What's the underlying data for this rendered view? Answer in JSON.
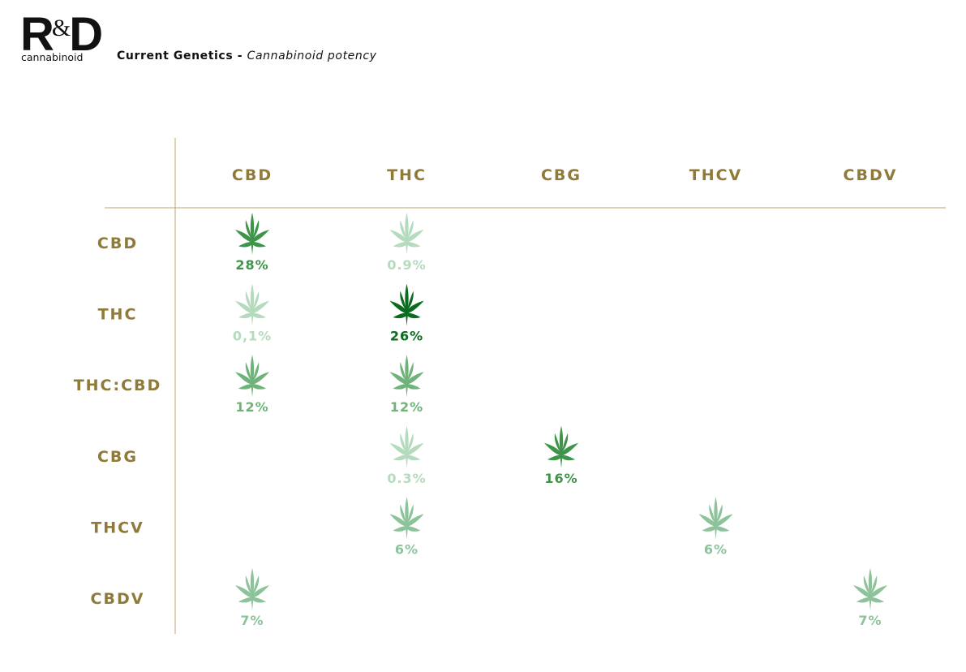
{
  "header": {
    "logo_mark": "R",
    "logo_amp": "&",
    "logo_mark_end": "D",
    "logo_sub": "cannabinoid",
    "title": "Current Genetics - ",
    "subtitle": "Cannabinoid potency"
  },
  "colors": {
    "label_gold": "#8f7a3a",
    "grid_line": "#b9a46a",
    "leaf_dark": "#0b6b1f",
    "leaf_strong": "#3e9449",
    "leaf_medium": "#6fb27a",
    "leaf_soft": "#8cc39a",
    "leaf_faint": "#b5dbbe"
  },
  "chart_data": {
    "type": "table",
    "columns": [
      "CBD",
      "THC",
      "CBG",
      "THCV",
      "CBDV"
    ],
    "rows": [
      "CBD",
      "THC",
      "THC:CBD",
      "CBG",
      "THCV",
      "CBDV"
    ],
    "cells": [
      {
        "row": "CBD",
        "column": "CBD",
        "value": "28%",
        "intensity": "strong"
      },
      {
        "row": "CBD",
        "column": "THC",
        "value": "0.9%",
        "intensity": "faint"
      },
      {
        "row": "THC",
        "column": "CBD",
        "value": "0,1%",
        "intensity": "faint"
      },
      {
        "row": "THC",
        "column": "THC",
        "value": "26%",
        "intensity": "dark"
      },
      {
        "row": "THC:CBD",
        "column": "CBD",
        "value": "12%",
        "intensity": "medium"
      },
      {
        "row": "THC:CBD",
        "column": "THC",
        "value": "12%",
        "intensity": "medium"
      },
      {
        "row": "CBG",
        "column": "THC",
        "value": "0.3%",
        "intensity": "faint"
      },
      {
        "row": "CBG",
        "column": "CBG",
        "value": "16%",
        "intensity": "strong"
      },
      {
        "row": "THCV",
        "column": "THC",
        "value": "6%",
        "intensity": "soft"
      },
      {
        "row": "THCV",
        "column": "THCV",
        "value": "6%",
        "intensity": "soft"
      },
      {
        "row": "CBDV",
        "column": "CBD",
        "value": "7%",
        "intensity": "soft"
      },
      {
        "row": "CBDV",
        "column": "CBDV",
        "value": "7%",
        "intensity": "soft"
      }
    ]
  }
}
